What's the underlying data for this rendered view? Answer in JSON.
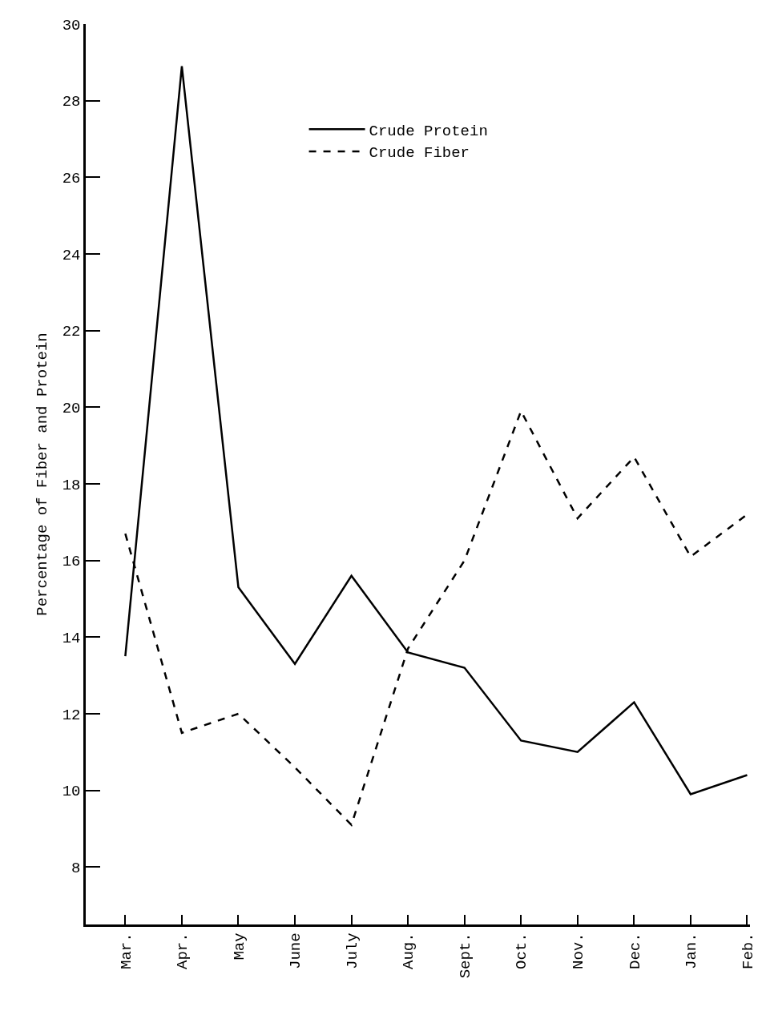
{
  "chart_data": {
    "type": "line",
    "ylabel": "Percentage of Fiber and Protein",
    "categories": [
      "Mar.",
      "Apr.",
      "May",
      "June",
      "July",
      "Aug.",
      "Sept.",
      "Oct.",
      "Nov.",
      "Dec.",
      "Jan.",
      "Feb."
    ],
    "series": [
      {
        "name": "Crude Protein",
        "color": "#000000",
        "line_style": "solid",
        "values": [
          13.5,
          28.9,
          15.3,
          13.3,
          15.6,
          13.6,
          13.2,
          11.3,
          11.0,
          12.3,
          9.9,
          10.4
        ]
      },
      {
        "name": "Crude Fiber",
        "color": "#000000",
        "line_style": "dashed",
        "values": [
          16.7,
          11.5,
          12.0,
          10.6,
          9.1,
          13.7,
          16.0,
          19.9,
          17.1,
          18.7,
          16.1,
          17.2
        ]
      }
    ],
    "ylim": [
      6.5,
      30
    ],
    "yticks": [
      8,
      10,
      12,
      14,
      16,
      18,
      20,
      22,
      24,
      26,
      28,
      30
    ],
    "grid": false,
    "legend": "top",
    "marker": "none"
  }
}
